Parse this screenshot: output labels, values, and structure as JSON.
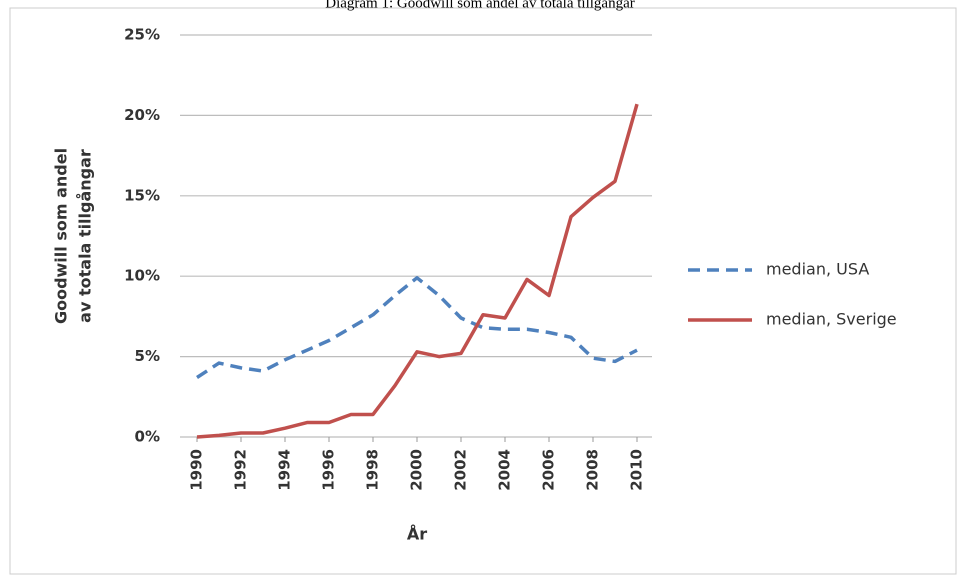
{
  "chart_data": {
    "type": "line",
    "title": "Diagram 1: Goodwill som andel av totala tillgångar",
    "ylabel": [
      "Goodwill som andel",
      "av totala tillgångar"
    ],
    "xlabel": "År",
    "x": [
      1990,
      1991,
      1992,
      1993,
      1994,
      1995,
      1996,
      1997,
      1998,
      1999,
      2000,
      2001,
      2002,
      2003,
      2004,
      2005,
      2006,
      2007,
      2008,
      2009,
      2010
    ],
    "xlim": [
      1990,
      2010
    ],
    "xticks": [
      1990,
      1992,
      1994,
      1996,
      1998,
      2000,
      2002,
      2004,
      2006,
      2008,
      2010
    ],
    "ylim": [
      0,
      25
    ],
    "yticks": [
      {
        "value": 0,
        "label": "0%"
      },
      {
        "value": 5,
        "label": "5%"
      },
      {
        "value": 10,
        "label": "10%"
      },
      {
        "value": 15,
        "label": "15%"
      },
      {
        "value": 20,
        "label": "20%"
      },
      {
        "value": 25,
        "label": "25%"
      }
    ],
    "grid": true,
    "legend": "right",
    "series": [
      {
        "name": "median, USA",
        "color": "#4f81bd",
        "dashed": true,
        "values": [
          3.7,
          4.6,
          4.3,
          4.1,
          4.8,
          5.4,
          6.0,
          6.8,
          7.6,
          8.8,
          9.9,
          8.8,
          7.4,
          6.8,
          6.7,
          6.7,
          6.5,
          6.2,
          4.9,
          4.7,
          5.4
        ]
      },
      {
        "name": "median, Sverige",
        "color": "#c0504d",
        "dashed": false,
        "values": [
          0,
          0.1,
          0.25,
          0.25,
          0.55,
          0.9,
          0.9,
          1.4,
          1.4,
          3.2,
          5.3,
          5.0,
          5.2,
          7.6,
          7.4,
          9.8,
          8.8,
          13.7,
          14.9,
          15.9,
          20.7
        ]
      }
    ]
  }
}
